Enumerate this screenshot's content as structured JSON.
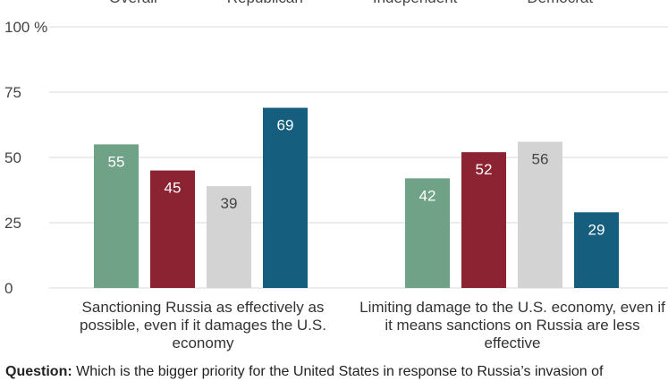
{
  "legend": [
    {
      "name": "Overall",
      "color": "#6fa287"
    },
    {
      "name": "Republican",
      "color": "#8b2332"
    },
    {
      "name": "Independent",
      "color": "#d3d3d3"
    },
    {
      "name": "Democrat",
      "color": "#165e7e"
    }
  ],
  "question": {
    "label": "Question:",
    "text": "Which is the bigger priority for the United States in response to Russia’s invasion of"
  },
  "chart_data": {
    "type": "bar",
    "categories": [
      "Sanctioning Russia as effectively as possible, even if it damages the U.S. economy",
      "Limiting damage to the U.S. economy, even if it means sanctions on Russia are less effective"
    ],
    "series": [
      {
        "name": "Overall",
        "values": [
          55,
          42
        ],
        "color": "#6fa287"
      },
      {
        "name": "Republican",
        "values": [
          45,
          52
        ],
        "color": "#8b2332"
      },
      {
        "name": "Independent",
        "values": [
          39,
          56
        ],
        "color": "#d3d3d3"
      },
      {
        "name": "Democrat",
        "values": [
          69,
          29
        ],
        "color": "#165e7e"
      }
    ],
    "yticks": [
      0,
      25,
      50,
      75,
      100
    ],
    "y_unit": "%",
    "ylim": [
      0,
      100
    ],
    "grid": true,
    "legend_position": "top"
  }
}
